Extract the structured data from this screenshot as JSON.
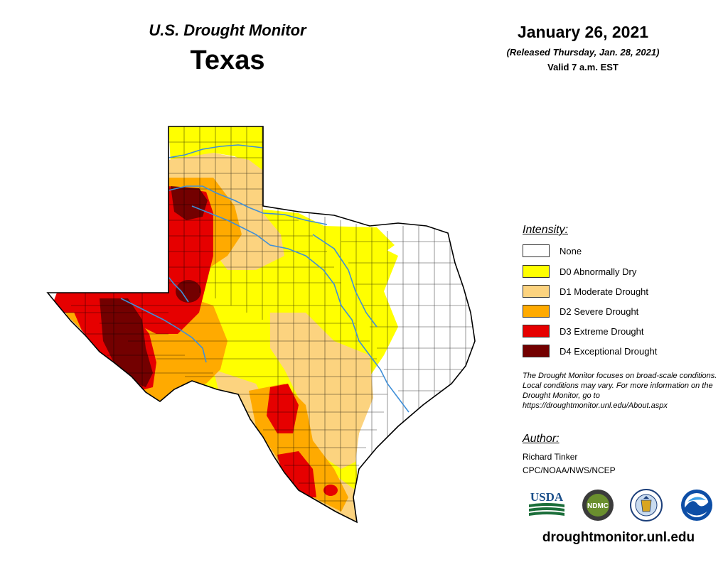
{
  "header": {
    "subtitle": "U.S. Drought Monitor",
    "state": "Texas",
    "date": "January 26, 2021",
    "released": "(Released Thursday, Jan. 28, 2021)",
    "valid": "Valid 7 a.m. EST"
  },
  "legend": {
    "title": "Intensity:",
    "items": [
      {
        "label": "None",
        "color": "#ffffff"
      },
      {
        "label": "D0 Abnormally Dry",
        "color": "#ffff00"
      },
      {
        "label": "D1 Moderate Drought",
        "color": "#fcd37f"
      },
      {
        "label": "D2 Severe Drought",
        "color": "#ffaa00"
      },
      {
        "label": "D3 Extreme Drought",
        "color": "#e60000"
      },
      {
        "label": "D4 Exceptional Drought",
        "color": "#730000"
      }
    ]
  },
  "note": "The Drought Monitor focuses on broad-scale conditions. Local conditions may vary. For more information on the Drought Monitor, go to https://droughtmonitor.unl.edu/About.aspx",
  "author": {
    "title": "Author:",
    "name": "Richard Tinker",
    "org": "CPC/NOAA/NWS/NCEP"
  },
  "logos": {
    "usda": "USDA",
    "ndmc": "NDMC",
    "items": [
      "usda-logo",
      "ndmc-logo",
      "doc-seal-logo",
      "noaa-logo"
    ]
  },
  "website": "droughtmonitor.unl.edu",
  "colors": {
    "none": "#ffffff",
    "d0": "#ffff00",
    "d1": "#fcd37f",
    "d2": "#ffaa00",
    "d3": "#e60000",
    "d4": "#730000",
    "river": "#3f8fd8",
    "county_line": "#000000"
  }
}
